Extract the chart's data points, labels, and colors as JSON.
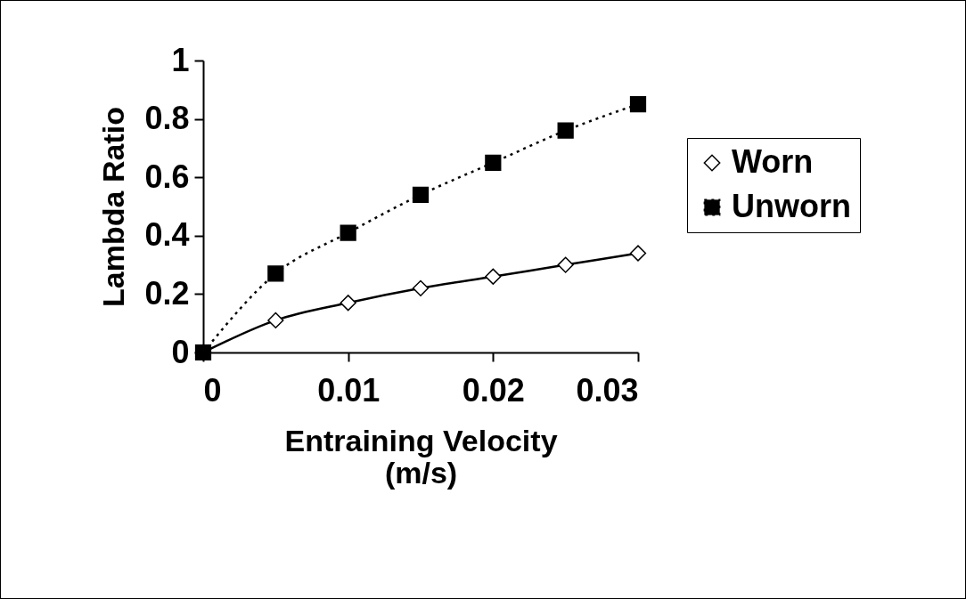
{
  "chart_data": {
    "type": "line",
    "xlabel": "Entraining Velocity\n(m/s)",
    "ylabel": "Lambda Ratio",
    "x": [
      0,
      0.005,
      0.01,
      0.015,
      0.02,
      0.025,
      0.03
    ],
    "series": [
      {
        "name": "Worn",
        "color": "#000000",
        "marker": "diamond",
        "line_style": "solid",
        "values": [
          0,
          0.11,
          0.17,
          0.22,
          0.26,
          0.3,
          0.34
        ]
      },
      {
        "name": "Unworn",
        "color": "#000000",
        "marker": "square",
        "line_style": "dotted",
        "values": [
          0,
          0.27,
          0.41,
          0.54,
          0.65,
          0.76,
          0.85
        ]
      }
    ],
    "xlim": [
      0,
      0.03
    ],
    "xticks": [
      0,
      0.01,
      0.02,
      0.03
    ],
    "ylim": [
      0,
      1
    ],
    "yticks": [
      0,
      0.2,
      0.4,
      0.6,
      0.8,
      1
    ],
    "grid": false,
    "legend": "right"
  }
}
